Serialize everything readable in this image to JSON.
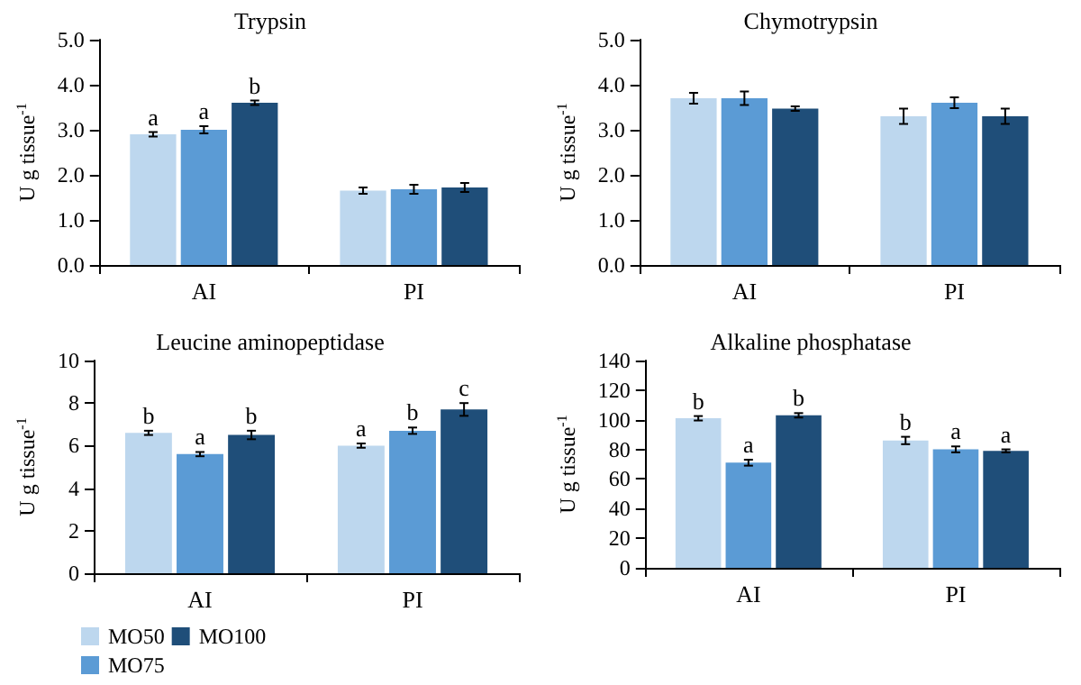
{
  "chart_data": [
    {
      "type": "bar",
      "title": "Trypsin",
      "ylabel": "U g tissue$^{-1}$",
      "categories": [
        "AI",
        "PI"
      ],
      "ylim": [
        0,
        5
      ],
      "yticks": [
        {
          "value": 0,
          "label": "0.0"
        },
        {
          "value": 1,
          "label": "1.0"
        },
        {
          "value": 2,
          "label": "2.0"
        },
        {
          "value": 3,
          "label": "3.0"
        },
        {
          "value": 4,
          "label": "4.0"
        },
        {
          "value": 5,
          "label": "5.0"
        }
      ],
      "grid": false,
      "legend": false,
      "series": [
        {
          "color": "#bdd7ee",
          "values": [
            2.9,
            1.65
          ],
          "errors": [
            0.05,
            0.07
          ],
          "value_labels": [
            "a",
            null
          ]
        },
        {
          "color": "#5b9bd5",
          "values": [
            3.0,
            1.68
          ],
          "errors": [
            0.08,
            0.1
          ],
          "value_labels": [
            "a",
            null
          ]
        },
        {
          "color": "#1f4e79",
          "values": [
            3.6,
            1.72
          ],
          "errors": [
            0.05,
            0.1
          ],
          "value_labels": [
            "b",
            null
          ]
        }
      ]
    },
    {
      "type": "bar",
      "title": "Chymotrypsin",
      "ylabel": "U g tissue$^{-1}$",
      "categories": [
        "AI",
        "PI"
      ],
      "ylim": [
        0,
        5
      ],
      "yticks": [
        {
          "value": 0,
          "label": "0.0"
        },
        {
          "value": 1,
          "label": "1.0"
        },
        {
          "value": 2,
          "label": "2.0"
        },
        {
          "value": 3,
          "label": "3.0"
        },
        {
          "value": 4,
          "label": "4.0"
        },
        {
          "value": 5,
          "label": "5.0"
        }
      ],
      "grid": false,
      "legend": false,
      "series": [
        {
          "color": "#bdd7ee",
          "values": [
            3.7,
            3.3
          ],
          "errors": [
            0.12,
            0.17
          ]
        },
        {
          "color": "#5b9bd5",
          "values": [
            3.7,
            3.6
          ],
          "errors": [
            0.15,
            0.12
          ]
        },
        {
          "color": "#1f4e79",
          "values": [
            3.47,
            3.3
          ],
          "errors": [
            0.05,
            0.17
          ]
        }
      ]
    },
    {
      "type": "bar",
      "title": "Leucine aminopeptidase",
      "ylabel": "U g tissue$^{-1}$",
      "categories": [
        "AI",
        "PI"
      ],
      "ylim": [
        0,
        10
      ],
      "yticks": [
        0,
        2,
        4,
        6,
        8,
        10
      ],
      "grid": false,
      "legend": "bottom left",
      "series": [
        {
          "name": "MO50",
          "color": "#bdd7ee",
          "values": [
            6.6,
            6.0
          ],
          "errors": [
            0.1,
            0.1
          ],
          "value_labels": [
            "b",
            "a"
          ]
        },
        {
          "name": "MO75",
          "color": "#5b9bd5",
          "values": [
            5.6,
            6.7
          ],
          "errors": [
            0.1,
            0.15
          ],
          "value_labels": [
            "a",
            "b"
          ]
        },
        {
          "name": "MO100",
          "color": "#1f4e79",
          "values": [
            6.5,
            7.7
          ],
          "errors": [
            0.2,
            0.3
          ],
          "value_labels": [
            "b",
            "c"
          ]
        }
      ]
    },
    {
      "type": "bar",
      "title": "Alkaline phosphatase",
      "ylabel": "U g tissue$^{-1}$",
      "categories": [
        "AI",
        "PI"
      ],
      "ylim": [
        0,
        140
      ],
      "yticks": [
        0,
        20,
        40,
        60,
        80,
        100,
        120,
        140
      ],
      "grid": false,
      "legend": false,
      "series": [
        {
          "color": "#bdd7ee",
          "values": [
            101,
            86
          ],
          "errors": [
            1.5,
            2.5
          ],
          "value_labels": [
            "b",
            "b"
          ]
        },
        {
          "color": "#5b9bd5",
          "values": [
            71,
            80
          ],
          "errors": [
            2,
            2
          ],
          "value_labels": [
            "a",
            "a"
          ]
        },
        {
          "color": "#1f4e79",
          "values": [
            103,
            79
          ],
          "errors": [
            1.5,
            1
          ],
          "value_labels": [
            "b",
            "a"
          ]
        }
      ]
    }
  ]
}
